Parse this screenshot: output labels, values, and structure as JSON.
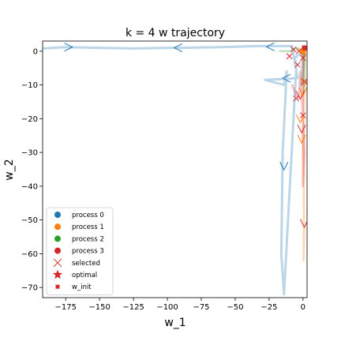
{
  "chart_data": {
    "type": "line",
    "title": "k = 4 w trajectory",
    "xlabel": "w_1",
    "ylabel": "w_2",
    "xlim": [
      -192,
      3
    ],
    "ylim": [
      -73,
      3
    ],
    "xticks": [
      -175,
      -150,
      -125,
      -100,
      -75,
      -50,
      -25,
      0
    ],
    "yticks": [
      0,
      -10,
      -20,
      -30,
      -40,
      -50,
      -60,
      -70
    ],
    "grid": false,
    "legend_position": "lower-left",
    "legend": [
      {
        "label": "process 0",
        "marker": "dot",
        "color": "#1f77b4"
      },
      {
        "label": "process 1",
        "marker": "dot",
        "color": "#ff7f0e"
      },
      {
        "label": "process 2",
        "marker": "dot",
        "color": "#2ca02c"
      },
      {
        "label": "process 3",
        "marker": "dot",
        "color": "#d62728"
      },
      {
        "label": "selected",
        "marker": "x",
        "color": "#d62728"
      },
      {
        "label": "optimal",
        "marker": "star",
        "color": "#d62728"
      },
      {
        "label": "w_init",
        "marker": "square",
        "color": "#d62728"
      }
    ],
    "series": [
      {
        "color": "#1f77b4",
        "x": [
          -192,
          -175,
          -150,
          -125,
          -100,
          -90,
          -60,
          -35,
          -8,
          -4,
          -28,
          -14,
          -12,
          -15,
          -16,
          -14,
          -5,
          -6,
          0,
          -1,
          1
        ],
        "y": [
          0.8,
          1.2,
          1.0,
          0.8,
          1.0,
          1.0,
          1.2,
          1.5,
          1.5,
          -8,
          -8.5,
          -10,
          -6,
          -30,
          -60,
          -72,
          -5,
          -2,
          0,
          -10,
          0
        ]
      },
      {
        "color": "#ff7f0e",
        "x": [
          2,
          1,
          1,
          0,
          0.5,
          0.5,
          1,
          0.5,
          1
        ],
        "y": [
          1,
          -5,
          -15,
          -25,
          -35,
          -45,
          -52,
          -62,
          0
        ]
      },
      {
        "color": "#2ca02c",
        "x": [
          -17,
          -10,
          -5,
          -1,
          1,
          1,
          0.5,
          1
        ],
        "y": [
          0,
          0,
          1,
          0.5,
          -3,
          -9,
          -12,
          0
        ]
      },
      {
        "color": "#d62728",
        "x": [
          -8,
          -5,
          -3,
          -2,
          0,
          1,
          0,
          0
        ],
        "y": [
          -10,
          -13,
          -14,
          -6,
          -20,
          -30,
          -40,
          0
        ]
      }
    ],
    "selected_markers": [
      {
        "x": -173,
        "y": 1.2,
        "dir": "right"
      },
      {
        "x": -92,
        "y": 1.0,
        "dir": "left"
      },
      {
        "x": -14,
        "y": -34,
        "dir": "down"
      },
      {
        "x": -24,
        "y": 1.3,
        "dir": "left"
      },
      {
        "x": -12,
        "y": -8,
        "dir": "left"
      },
      {
        "x": -2,
        "y": -20,
        "dir": "down"
      },
      {
        "x": -1,
        "y": -23,
        "dir": "down"
      },
      {
        "x": -1,
        "y": -26,
        "dir": "down"
      },
      {
        "x": -2,
        "y": -13,
        "dir": "down"
      },
      {
        "x": 0,
        "y": -12,
        "dir": "down"
      },
      {
        "x": 1,
        "y": -51,
        "dir": "down"
      },
      {
        "x": 1,
        "y": -9,
        "dir": "down"
      }
    ],
    "x_markers": [
      {
        "x": -7,
        "y": 0.5
      },
      {
        "x": -3,
        "y": 0
      },
      {
        "x": -10,
        "y": -1.5
      },
      {
        "x": 0,
        "y": -2
      },
      {
        "x": -4,
        "y": -4
      },
      {
        "x": 1,
        "y": -9
      },
      {
        "x": -5,
        "y": -14
      },
      {
        "x": 0,
        "y": -19
      }
    ],
    "optimal": {
      "x": 0,
      "y": 0
    },
    "w_init": {
      "x": 1,
      "y": 1
    }
  }
}
